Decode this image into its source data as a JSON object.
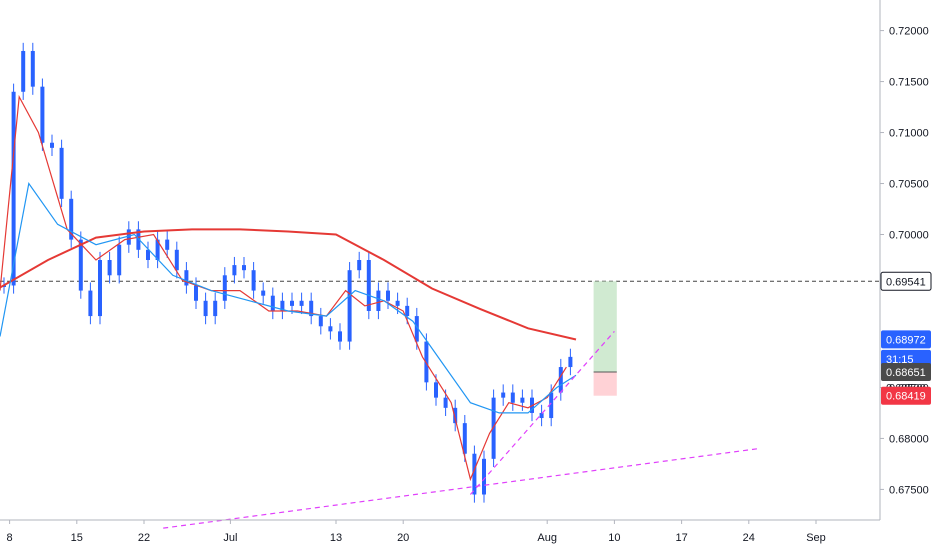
{
  "chart_data": {
    "type": "line",
    "title": "",
    "xlabel": "",
    "ylabel": "",
    "grid": false,
    "x_tick_labels": [
      "8",
      "15",
      "22",
      "Jul",
      "13",
      "20",
      "Aug",
      "10",
      "17",
      "24",
      "Sep"
    ],
    "y_tick_labels": [
      "0.72000",
      "0.71500",
      "0.71000",
      "0.70500",
      "0.70000",
      "0.68500",
      "0.68000",
      "0.67500"
    ],
    "ylim": [
      0.672,
      0.723
    ],
    "bars": {
      "color": "#2962ff",
      "approx_close": [
        [
          0,
          0.695
        ],
        [
          1,
          0.714
        ],
        [
          2,
          0.718
        ],
        [
          3,
          0.7145
        ],
        [
          4,
          0.709
        ],
        [
          5,
          0.7085
        ],
        [
          6,
          0.7035
        ],
        [
          7,
          0.6995
        ],
        [
          8,
          0.6945
        ],
        [
          9,
          0.692
        ],
        [
          10,
          0.6975
        ],
        [
          11,
          0.696
        ],
        [
          12,
          0.699
        ],
        [
          13,
          0.7005
        ],
        [
          14,
          0.6985
        ],
        [
          15,
          0.6975
        ],
        [
          16,
          0.6995
        ],
        [
          17,
          0.6985
        ],
        [
          18,
          0.6965
        ],
        [
          19,
          0.695
        ],
        [
          20,
          0.6935
        ],
        [
          21,
          0.692
        ],
        [
          22,
          0.6935
        ],
        [
          23,
          0.696
        ],
        [
          24,
          0.697
        ],
        [
          25,
          0.6965
        ],
        [
          26,
          0.6945
        ],
        [
          27,
          0.694
        ],
        [
          28,
          0.6925
        ],
        [
          29,
          0.6935
        ],
        [
          30,
          0.693
        ],
        [
          31,
          0.6935
        ],
        [
          32,
          0.692
        ],
        [
          33,
          0.691
        ],
        [
          34,
          0.6905
        ],
        [
          35,
          0.6895
        ],
        [
          36,
          0.6965
        ],
        [
          37,
          0.6975
        ],
        [
          38,
          0.6925
        ],
        [
          39,
          0.6945
        ],
        [
          40,
          0.6935
        ],
        [
          41,
          0.693
        ],
        [
          42,
          0.692
        ],
        [
          43,
          0.6895
        ],
        [
          44,
          0.6855
        ],
        [
          45,
          0.684
        ],
        [
          46,
          0.683
        ],
        [
          47,
          0.6815
        ],
        [
          48,
          0.6785
        ],
        [
          49,
          0.6745
        ],
        [
          50,
          0.678
        ],
        [
          51,
          0.684
        ],
        [
          52,
          0.6845
        ],
        [
          53,
          0.6835
        ],
        [
          54,
          0.684
        ],
        [
          55,
          0.6825
        ],
        [
          56,
          0.682
        ],
        [
          57,
          0.6845
        ],
        [
          58,
          0.687
        ],
        [
          59,
          0.688
        ]
      ]
    },
    "series": [
      {
        "color": "#e53935",
        "values": [
          [
            0,
            0.6948
          ],
          [
            5,
            0.6975
          ],
          [
            10,
            0.6997
          ],
          [
            15,
            0.7003
          ],
          [
            20,
            0.7005
          ],
          [
            25,
            0.7005
          ],
          [
            30,
            0.7003
          ],
          [
            35,
            0.7
          ],
          [
            40,
            0.6975
          ],
          [
            45,
            0.6947
          ],
          [
            50,
            0.6927
          ],
          [
            55,
            0.6908
          ],
          [
            60,
            0.6897
          ]
        ]
      },
      {
        "color": "#e53935",
        "values": [
          [
            0,
            0.6945
          ],
          [
            2,
            0.7135
          ],
          [
            4,
            0.71
          ],
          [
            7,
            0.7005
          ],
          [
            10,
            0.6975
          ],
          [
            13,
            0.6995
          ],
          [
            16,
            0.7
          ],
          [
            19,
            0.6955
          ],
          [
            22,
            0.6945
          ],
          [
            25,
            0.6945
          ],
          [
            28,
            0.6925
          ],
          [
            31,
            0.6925
          ],
          [
            34,
            0.692
          ],
          [
            36,
            0.6945
          ],
          [
            38,
            0.693
          ],
          [
            40,
            0.6935
          ],
          [
            42,
            0.6925
          ],
          [
            44,
            0.688
          ],
          [
            47,
            0.6835
          ],
          [
            49,
            0.676
          ],
          [
            51,
            0.6805
          ],
          [
            53,
            0.6835
          ],
          [
            55,
            0.683
          ],
          [
            57,
            0.684
          ],
          [
            59,
            0.687
          ]
        ]
      },
      {
        "color": "#2196f3",
        "values": [
          [
            0,
            0.69
          ],
          [
            3,
            0.705
          ],
          [
            6,
            0.701
          ],
          [
            10,
            0.699
          ],
          [
            14,
            0.7
          ],
          [
            18,
            0.696
          ],
          [
            22,
            0.6945
          ],
          [
            26,
            0.6935
          ],
          [
            30,
            0.6925
          ],
          [
            34,
            0.692
          ],
          [
            37,
            0.6945
          ],
          [
            40,
            0.6935
          ],
          [
            43,
            0.6915
          ],
          [
            46,
            0.6875
          ],
          [
            49,
            0.6835
          ],
          [
            52,
            0.6825
          ],
          [
            55,
            0.6825
          ],
          [
            58,
            0.685
          ],
          [
            60,
            0.6862
          ]
        ]
      }
    ],
    "horizontal_lines": [
      {
        "value": 0.69541,
        "style": "dashed",
        "color": "#444444"
      }
    ],
    "trend_lines": [
      {
        "color": "#e040fb",
        "style": "dashed",
        "from": [
          17,
          0.6712
        ],
        "to": [
          79,
          0.679
        ]
      },
      {
        "color": "#e040fb",
        "style": "dashed",
        "from": [
          49,
          0.6745
        ],
        "to": [
          64,
          0.6905
        ]
      }
    ],
    "position_tool": {
      "entry": 0.68651,
      "target": 0.69541,
      "stop": 0.68419,
      "profit_color": "#c8e6c9",
      "loss_color": "#ffcdd2"
    },
    "price_labels": [
      {
        "text": "0.69541",
        "value": 0.69541,
        "bg": "#ffffff",
        "fg": "#131722",
        "border": "#131722"
      },
      {
        "text": "0.68972",
        "value": 0.68972,
        "bg": "#2962ff",
        "fg": "#ffffff"
      },
      {
        "text": "31:15",
        "value": 0.6878,
        "bg": "#2962ff",
        "fg": "#ffffff"
      },
      {
        "text": "0.68651",
        "value": 0.68651,
        "bg": "#4a4a4a",
        "fg": "#ffffff"
      },
      {
        "text": "0.68500",
        "value": 0.685,
        "bg": "#ffffff",
        "fg": "#131722"
      },
      {
        "text": "0.68419",
        "value": 0.68419,
        "bg": "#f23645",
        "fg": "#ffffff"
      }
    ]
  }
}
